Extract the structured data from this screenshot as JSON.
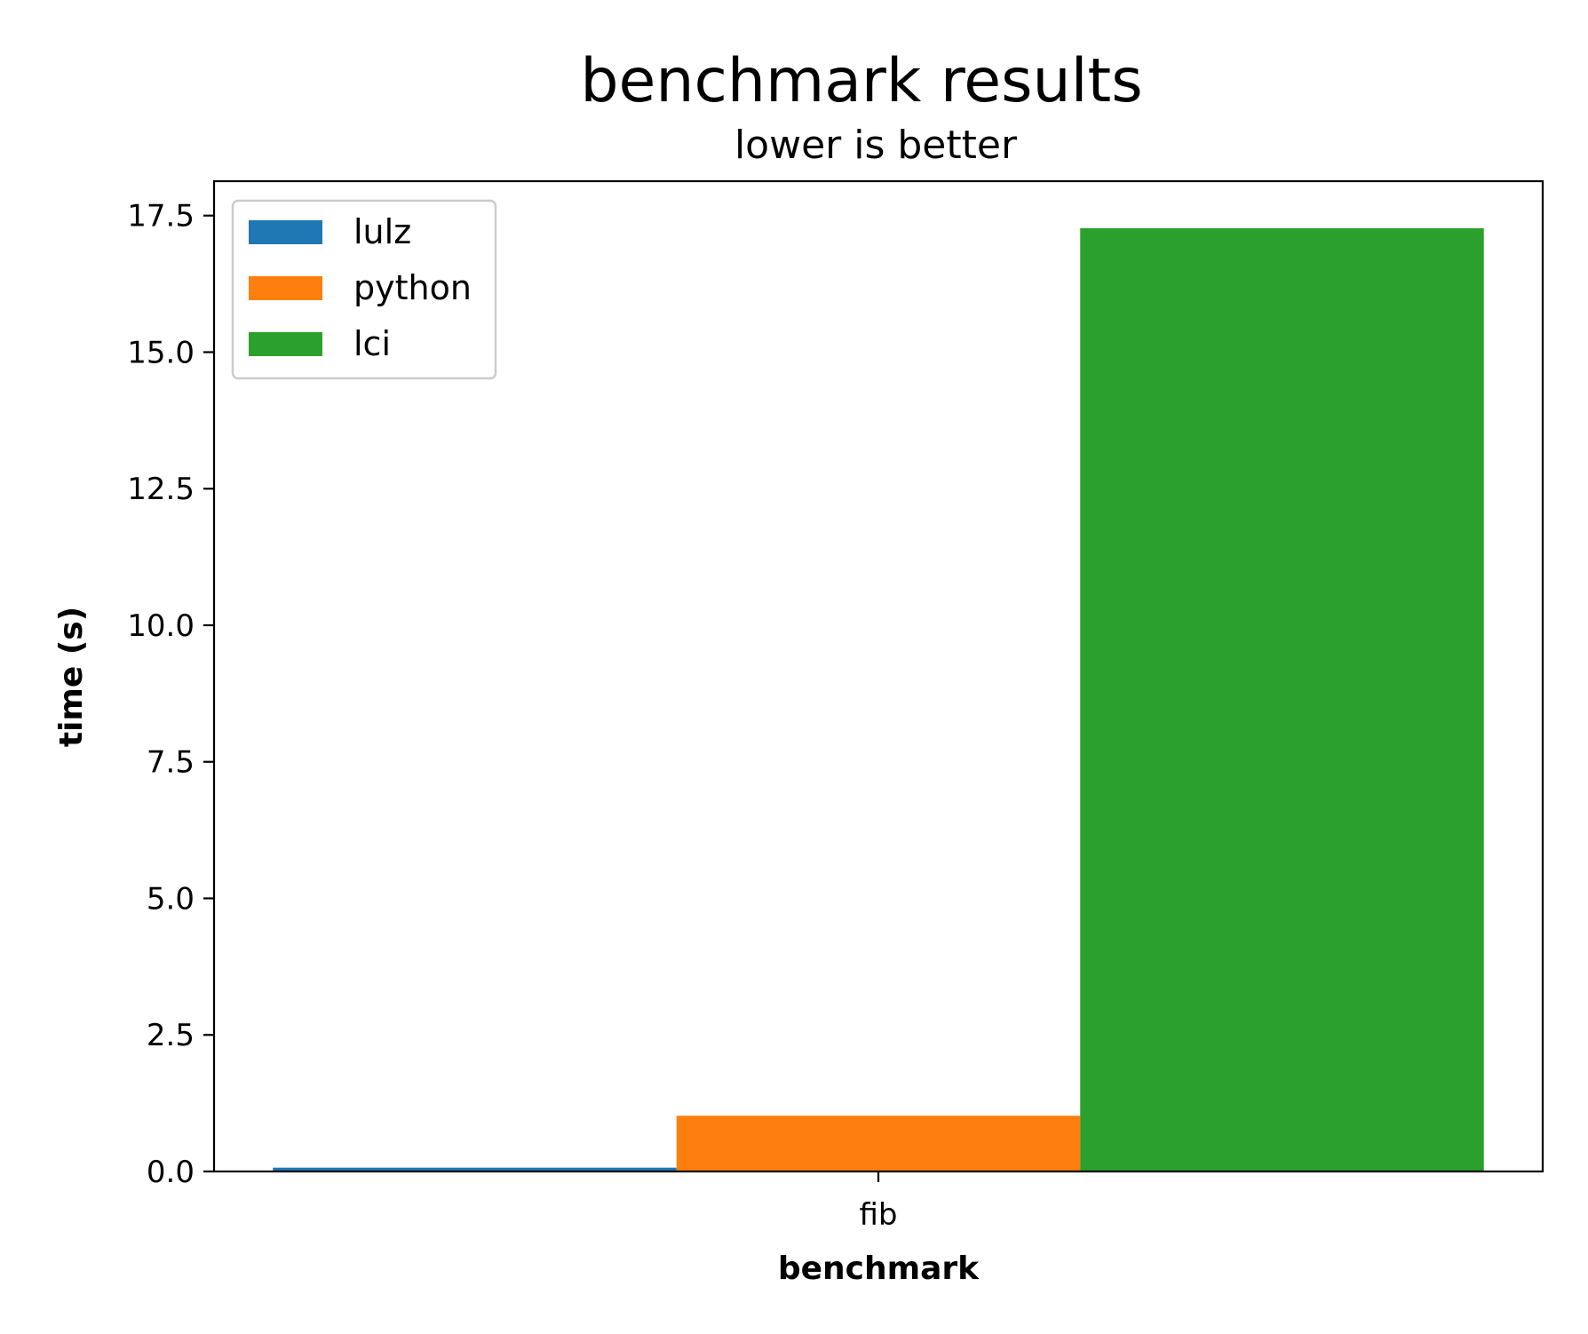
{
  "chart_data": {
    "type": "bar",
    "title": "benchmark results",
    "subtitle": "lower is better",
    "xlabel": "benchmark",
    "ylabel": "time (s)",
    "categories": [
      "fib"
    ],
    "series": [
      {
        "name": "lulz",
        "values": [
          0.07
        ],
        "color": "#1f77b4"
      },
      {
        "name": "python",
        "values": [
          1.02
        ],
        "color": "#ff7f0e"
      },
      {
        "name": "lci",
        "values": [
          17.27
        ],
        "color": "#2ca02c"
      }
    ],
    "ylim": [
      0,
      18.13
    ],
    "yticks": [
      0.0,
      2.5,
      5.0,
      7.5,
      10.0,
      12.5,
      15.0,
      17.5
    ],
    "ytick_labels": [
      "0.0",
      "2.5",
      "5.0",
      "7.5",
      "10.0",
      "12.5",
      "15.0",
      "17.5"
    ],
    "grid": false,
    "legend_position": "upper left"
  }
}
